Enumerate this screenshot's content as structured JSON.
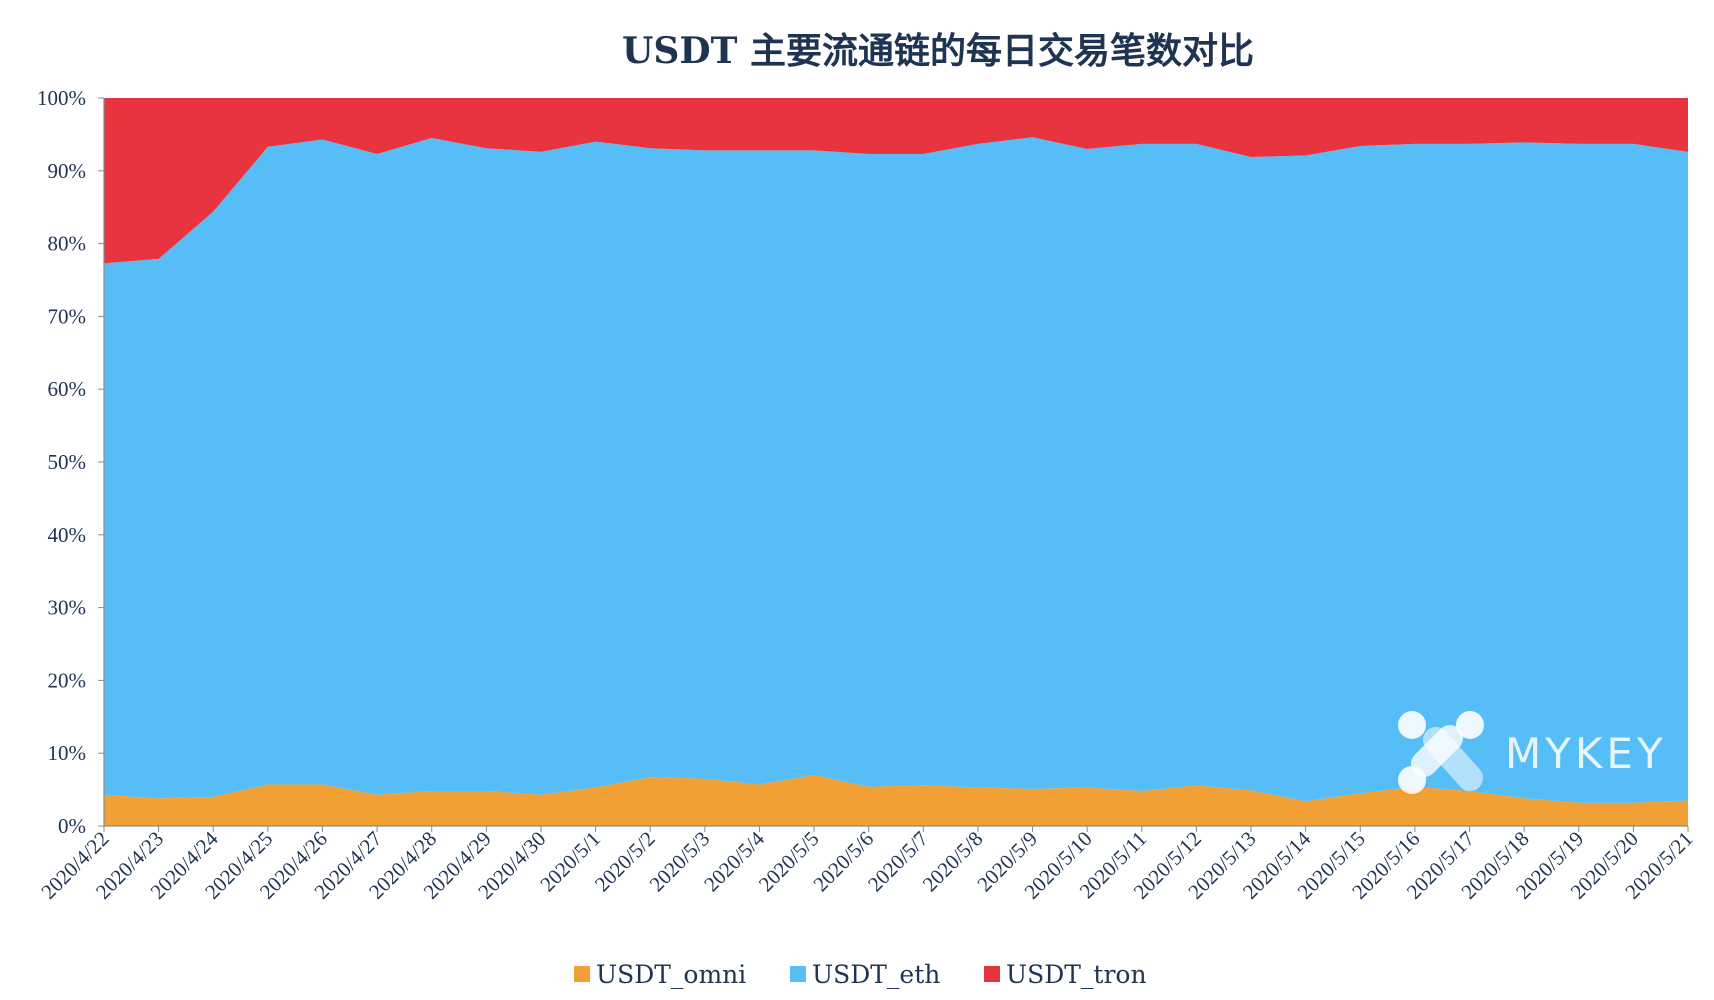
{
  "chart_data": {
    "type": "area",
    "stacked": true,
    "normalized": true,
    "title": "USDT 主要流通链的每日交易笔数对比",
    "xlabel": "",
    "ylabel": "",
    "ylim": [
      0,
      100
    ],
    "y_ticks": [
      "0%",
      "10%",
      "20%",
      "30%",
      "40%",
      "50%",
      "60%",
      "70%",
      "80%",
      "90%",
      "100%"
    ],
    "grid": false,
    "legend_position": "bottom",
    "x": [
      "2020/4/22",
      "2020/4/23",
      "2020/4/24",
      "2020/4/25",
      "2020/4/26",
      "2020/4/27",
      "2020/4/28",
      "2020/4/29",
      "2020/4/30",
      "2020/5/1",
      "2020/5/2",
      "2020/5/3",
      "2020/5/4",
      "2020/5/5",
      "2020/5/6",
      "2020/5/7",
      "2020/5/8",
      "2020/5/9",
      "2020/5/10",
      "2020/5/11",
      "2020/5/12",
      "2020/5/13",
      "2020/5/14",
      "2020/5/15",
      "2020/5/16",
      "2020/5/17",
      "2020/5/18",
      "2020/5/19",
      "2020/5/20",
      "2020/5/21"
    ],
    "series": [
      {
        "name": "USDT_omni",
        "color": "#f0a035",
        "values": [
          4.3,
          3.8,
          4.0,
          5.7,
          5.7,
          4.3,
          4.8,
          4.8,
          4.3,
          5.3,
          6.7,
          6.5,
          5.7,
          7.0,
          5.4,
          5.6,
          5.3,
          5.1,
          5.3,
          4.8,
          5.6,
          4.9,
          3.4,
          4.5,
          5.4,
          4.8,
          3.8,
          3.2,
          3.2,
          3.5
        ]
      },
      {
        "name": "USDT_eth",
        "color": "#56bdf7",
        "values": [
          73.0,
          74.1,
          80.4,
          87.6,
          88.6,
          88.0,
          89.7,
          88.3,
          88.3,
          88.7,
          86.4,
          86.3,
          87.1,
          85.8,
          86.9,
          86.7,
          88.4,
          89.5,
          87.7,
          88.9,
          88.1,
          87.0,
          88.7,
          88.9,
          88.3,
          88.9,
          90.1,
          90.5,
          90.5,
          89.1
        ]
      },
      {
        "name": "USDT_tron",
        "color": "#e8343e",
        "values": [
          22.7,
          22.1,
          15.6,
          6.7,
          5.7,
          7.7,
          5.5,
          6.9,
          7.4,
          6.0,
          6.9,
          7.2,
          7.2,
          7.2,
          7.7,
          7.7,
          6.3,
          5.4,
          7.0,
          6.3,
          6.3,
          8.1,
          7.9,
          6.6,
          6.3,
          6.3,
          6.1,
          6.3,
          6.3,
          7.4
        ]
      }
    ]
  },
  "watermark": {
    "text": "MYKEY",
    "icon": "mykey-logo-icon"
  }
}
